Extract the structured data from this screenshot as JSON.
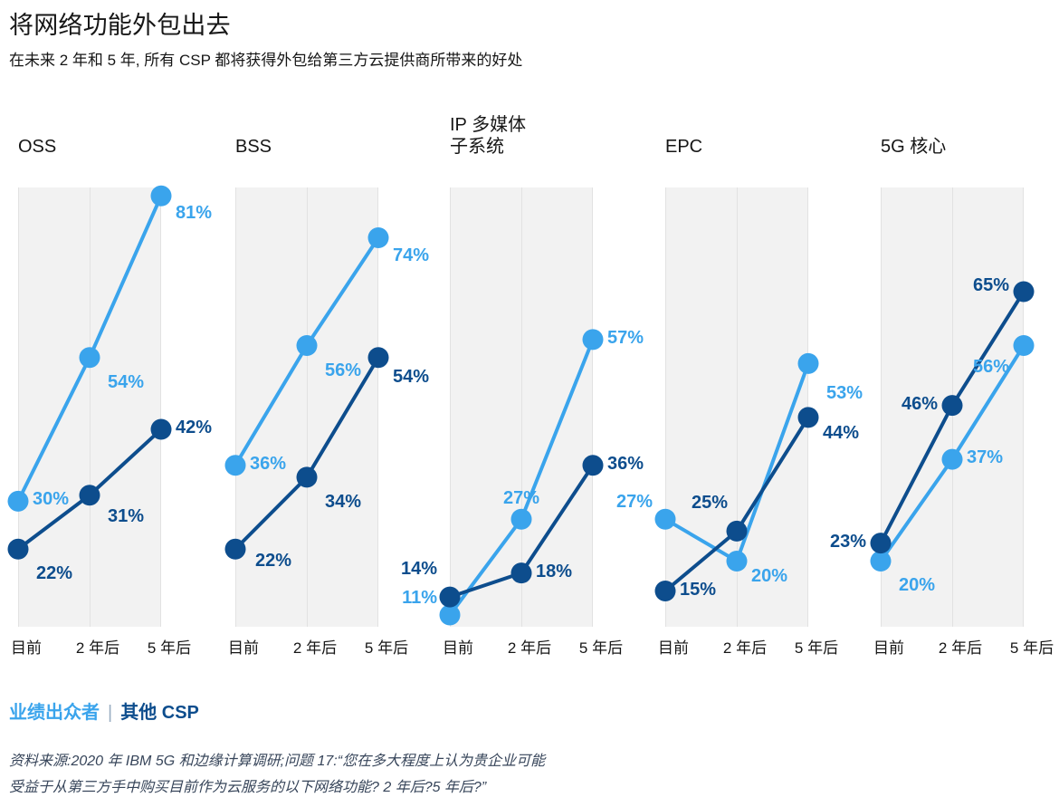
{
  "header": {
    "title": "将网络功能外包出去",
    "subtitle": "在未来 2 年和 5 年, 所有 CSP 都将获得外包给第三方云提供商所带来的好处"
  },
  "legend": {
    "performer_label": "业绩出众者",
    "separator": "|",
    "other_label": "其他 CSP"
  },
  "source": {
    "line1": "资料来源:2020 年 IBM 5G 和边缘计算调研;问题 17:“您在多大程度上认为贵企业可能",
    "line2": "受益于从第三方手中购买目前作为云服务的以下网络功能? 2 年后?5 年后?”"
  },
  "colors": {
    "performer": "#3AA4EC",
    "other": "#0D4D8D",
    "panel_bg": "#F2F2F2",
    "gridline": "#E2E2E2",
    "ink": "#161616",
    "source_text": "#37455A"
  },
  "chart_data": {
    "type": "line",
    "x_categories": [
      "目前",
      "2 年后",
      "5 年后"
    ],
    "unit": "%",
    "ylim": [
      9,
      82
    ],
    "grid": "vertical-only",
    "legend_position": "bottom-left",
    "panels": [
      {
        "title_lines": [
          "OSS"
        ],
        "series": [
          {
            "name": "业绩出众者",
            "color": "performer",
            "points": [
              {
                "value": 30,
                "label": "30%",
                "pos": "r"
              },
              {
                "value": 54,
                "label": "54%",
                "pos": "br"
              },
              {
                "value": 81,
                "label": "81%",
                "pos": "rl",
                "dy": 6
              }
            ]
          },
          {
            "name": "其他 CSP",
            "color": "other",
            "points": [
              {
                "value": 22,
                "label": "22%",
                "pos": "br"
              },
              {
                "value": 31,
                "label": "31%",
                "pos": "br",
                "dy": -4
              },
              {
                "value": 42,
                "label": "42%",
                "pos": "r"
              }
            ]
          }
        ]
      },
      {
        "title_lines": [
          "BSS"
        ],
        "series": [
          {
            "name": "业绩出众者",
            "color": "performer",
            "points": [
              {
                "value": 36,
                "label": "36%",
                "pos": "r"
              },
              {
                "value": 56,
                "label": "56%",
                "pos": "br"
              },
              {
                "value": 74,
                "label": "74%",
                "pos": "rl",
                "dy": 6
              }
            ]
          },
          {
            "name": "其他 CSP",
            "color": "other",
            "points": [
              {
                "value": 22,
                "label": "22%",
                "pos": "rl",
                "dx": 6
              },
              {
                "value": 34,
                "label": "34%",
                "pos": "br"
              },
              {
                "value": 54,
                "label": "54%",
                "pos": "rl",
                "dy": 8
              }
            ]
          }
        ]
      },
      {
        "title_lines": [
          "IP 多媒体",
          "子系统"
        ],
        "series": [
          {
            "name": "业绩出众者",
            "color": "performer",
            "points": [
              {
                "value": 11,
                "label": "11%",
                "pos": "lu"
              },
              {
                "value": 27,
                "label": "27%",
                "pos": "a"
              },
              {
                "value": 57,
                "label": "57%",
                "pos": "r"
              }
            ]
          },
          {
            "name": "其他 CSP",
            "color": "other",
            "points": [
              {
                "value": 14,
                "label": "14%",
                "pos": "lu",
                "dy": -12
              },
              {
                "value": 18,
                "label": "18%",
                "pos": "r"
              },
              {
                "value": 36,
                "label": "36%",
                "pos": "r"
              }
            ]
          }
        ]
      },
      {
        "title_lines": [
          "EPC"
        ],
        "series": [
          {
            "name": "业绩出众者",
            "color": "performer",
            "points": [
              {
                "value": 27,
                "label": "27%",
                "pos": "lu"
              },
              {
                "value": 20,
                "label": "20%",
                "pos": "rl",
                "dy": 4
              },
              {
                "value": 53,
                "label": "53%",
                "pos": "br",
                "dy": 6
              }
            ]
          },
          {
            "name": "其他 CSP",
            "color": "other",
            "points": [
              {
                "value": 15,
                "label": "15%",
                "pos": "r"
              },
              {
                "value": 25,
                "label": "25%",
                "pos": "al"
              },
              {
                "value": 44,
                "label": "44%",
                "pos": "rl",
                "dy": 4
              }
            ]
          }
        ]
      },
      {
        "title_lines": [
          "5G 核心"
        ],
        "series": [
          {
            "name": "业绩出众者",
            "color": "performer",
            "points": [
              {
                "value": 20,
                "label": "20%",
                "pos": "br"
              },
              {
                "value": 37,
                "label": "37%",
                "pos": "r"
              },
              {
                "value": 56,
                "label": "56%",
                "pos": "ll",
                "dy": 8
              }
            ]
          },
          {
            "name": "其他 CSP",
            "color": "other",
            "points": [
              {
                "value": 23,
                "label": "23%",
                "pos": "l"
              },
              {
                "value": 46,
                "label": "46%",
                "pos": "l"
              },
              {
                "value": 65,
                "label": "65%",
                "pos": "l",
                "dy": -5
              }
            ]
          }
        ]
      }
    ]
  }
}
